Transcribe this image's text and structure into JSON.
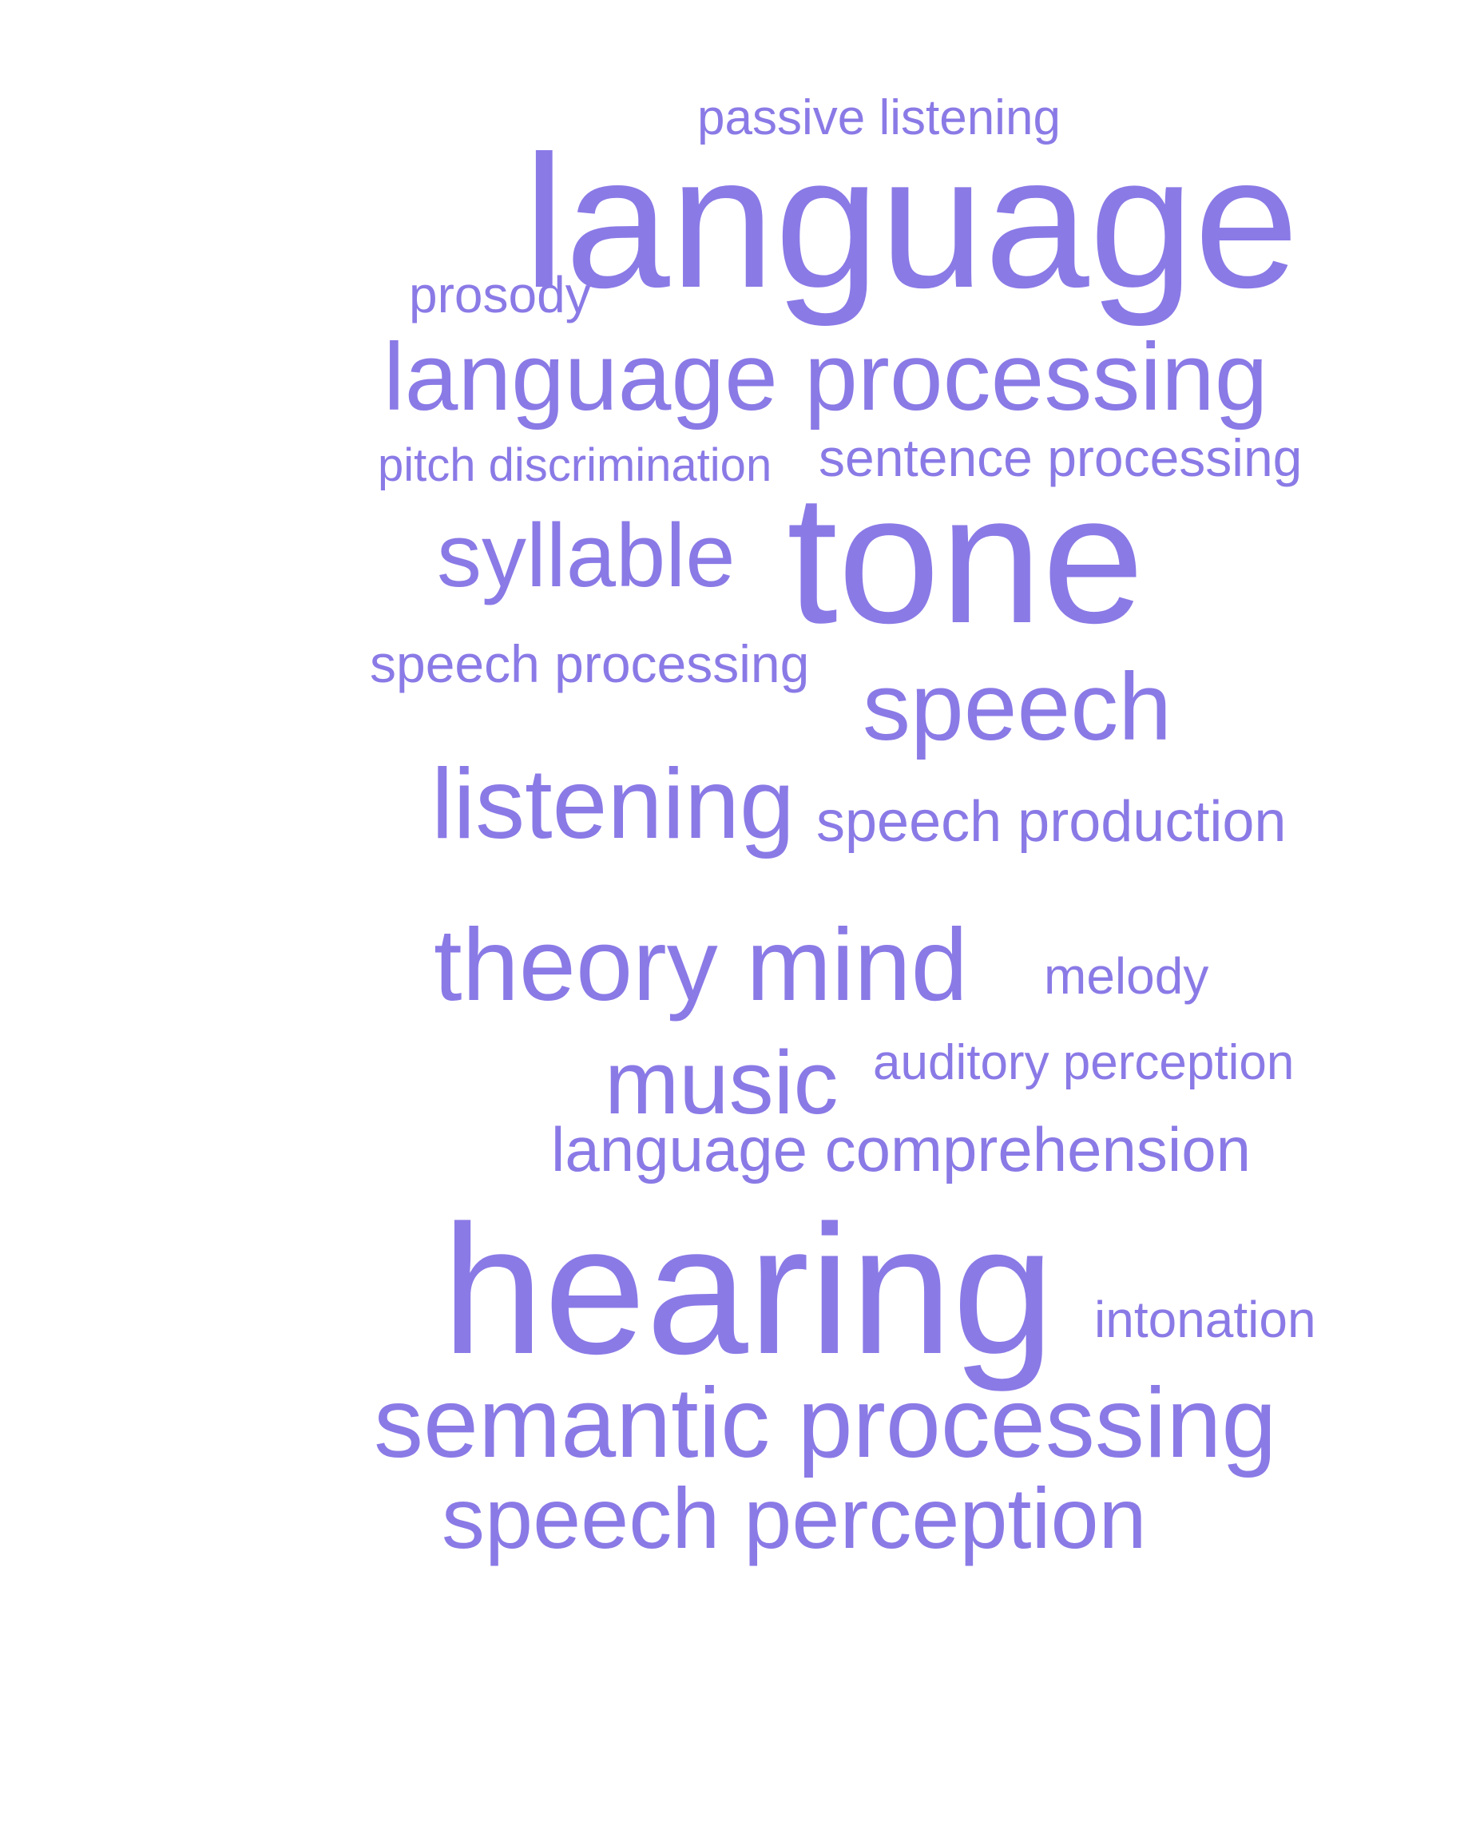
{
  "word_cloud": {
    "color": "#8a7ae6",
    "words": {
      "passive_listening": "passive listening",
      "language": "language",
      "prosody": "prosody",
      "language_processing": "language processing",
      "pitch_discrimination": "pitch discrimination",
      "sentence_processing": "sentence processing",
      "syllable": "syllable",
      "tone": "tone",
      "speech_processing": "speech processing",
      "speech": "speech",
      "listening": "listening",
      "speech_production": "speech production",
      "theory_mind": "theory mind",
      "melody": "melody",
      "music": "music",
      "auditory_perception": "auditory perception",
      "language_comprehension": "language comprehension",
      "hearing": "hearing",
      "intonation": "intonation",
      "semantic_processing": "semantic processing",
      "speech_perception": "speech perception"
    }
  }
}
